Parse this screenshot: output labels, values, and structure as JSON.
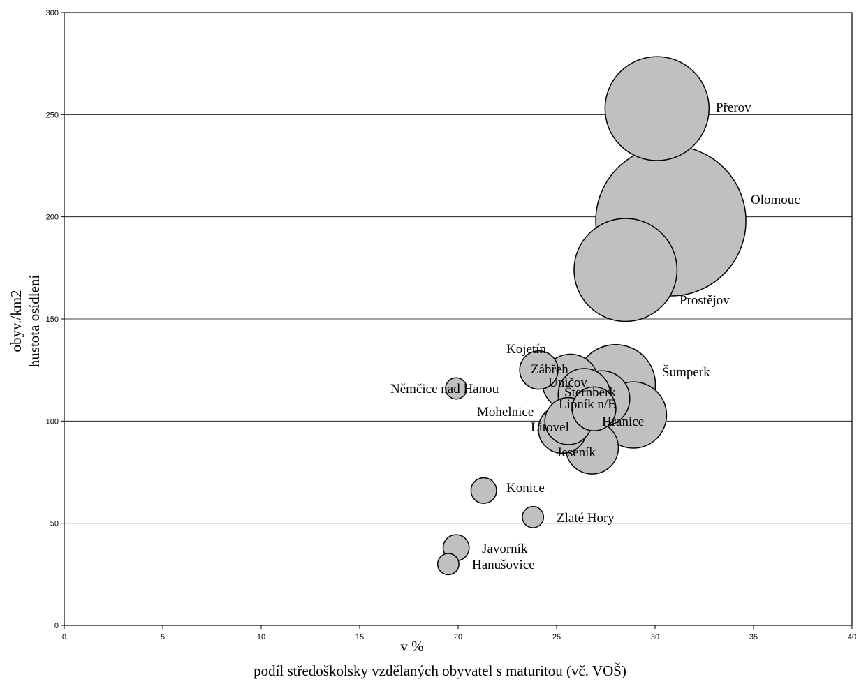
{
  "chart_data": {
    "type": "scatter",
    "subtype": "bubble",
    "xlabel": "podíl středoškolsky vzdělaných obyvatel s maturitou (vč. VOŠ)",
    "xunit": "v %",
    "ylabel_line1": "obyv./km2",
    "ylabel_line2": "hustota osídlení",
    "xlim": [
      0,
      40
    ],
    "ylim": [
      0,
      300
    ],
    "xticks": [
      0,
      5,
      10,
      15,
      20,
      25,
      30,
      35,
      40
    ],
    "yticks": [
      0,
      50,
      100,
      150,
      200,
      250,
      300
    ],
    "grid": "horizontal",
    "legend": "none",
    "colors": {
      "bubble_fill": "#c0c0c0",
      "bubble_stroke": "#000000"
    },
    "points": [
      {
        "name": "Přerov",
        "x": 30.1,
        "y": 253,
        "size": 48000
      },
      {
        "name": "Olomouc",
        "x": 30.8,
        "y": 198,
        "size": 100000
      },
      {
        "name": "Prostějov",
        "x": 28.5,
        "y": 174,
        "size": 47000
      },
      {
        "name": "Šumperk",
        "x": 28.0,
        "y": 118,
        "size": 28000
      },
      {
        "name": "Kojetín",
        "x": 24.1,
        "y": 125,
        "size": 6500
      },
      {
        "name": "Zábřeh",
        "x": 25.7,
        "y": 119,
        "size": 14000
      },
      {
        "name": "Uničov",
        "x": 26.4,
        "y": 113,
        "size": 12000
      },
      {
        "name": "Šternberk",
        "x": 27.3,
        "y": 111,
        "size": 13800
      },
      {
        "name": "Lipník n/B",
        "x": 26.9,
        "y": 106,
        "size": 8500
      },
      {
        "name": "Hranice",
        "x": 28.9,
        "y": 103,
        "size": 19500
      },
      {
        "name": "Mohelnice",
        "x": 25.6,
        "y": 100,
        "size": 9800
      },
      {
        "name": "Litovel",
        "x": 25.3,
        "y": 96,
        "size": 10300
      },
      {
        "name": "Jeseník",
        "x": 26.8,
        "y": 87,
        "size": 12300
      },
      {
        "name": "Němčice nad Hanou",
        "x": 19.9,
        "y": 116,
        "size": 2000
      },
      {
        "name": "Konice",
        "x": 21.3,
        "y": 66,
        "size": 2900
      },
      {
        "name": "Zlaté Hory",
        "x": 23.8,
        "y": 53,
        "size": 2000
      },
      {
        "name": "Javorník",
        "x": 19.9,
        "y": 38,
        "size": 3000
      },
      {
        "name": "Hanušovice",
        "x": 19.5,
        "y": 30,
        "size": 2000
      }
    ],
    "labels": [
      {
        "text": "Přerov"
      },
      {
        "text": "Olomouc"
      },
      {
        "text": "Prostějov"
      },
      {
        "text": "Šumperk"
      },
      {
        "text": "Kojetín"
      },
      {
        "text": "Zábřeh"
      },
      {
        "text": "Uničov"
      },
      {
        "text": "Šternberk"
      },
      {
        "text": "Lipník n/B"
      },
      {
        "text": "Hranice"
      },
      {
        "text": "Mohelnice"
      },
      {
        "text": "Litovel"
      },
      {
        "text": "Jeseník"
      },
      {
        "text": "Němčice nad Hanou"
      },
      {
        "text": "Konice"
      },
      {
        "text": "Zlaté Hory"
      },
      {
        "text": "Javorník"
      },
      {
        "text": "Hanušovice"
      }
    ]
  }
}
